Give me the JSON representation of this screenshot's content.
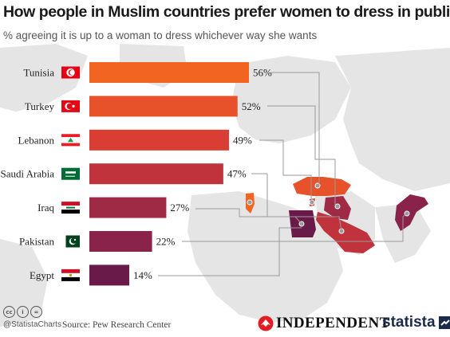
{
  "title": "How people in Muslim countries prefer women to dress in public",
  "subtitle": "% agreeing it is up to a woman to dress whichever way she wants",
  "chart_data": {
    "type": "bar",
    "orientation": "horizontal",
    "categories": [
      "Tunisia",
      "Turkey",
      "Lebanon",
      "Saudi Arabia",
      "Iraq",
      "Pakistan",
      "Egypt"
    ],
    "values": [
      56,
      52,
      49,
      47,
      27,
      22,
      14
    ],
    "value_labels": [
      "56%",
      "52%",
      "49%",
      "47%",
      "27%",
      "22%",
      "14%"
    ],
    "colors": [
      "#f26422",
      "#e8522b",
      "#d93e35",
      "#c0323c",
      "#9e2a45",
      "#8a2349",
      "#6a1a48"
    ],
    "flags": [
      "tunisia-flag",
      "turkey-flag",
      "lebanon-flag",
      "saudi-arabia-flag",
      "iraq-flag",
      "pakistan-flag",
      "egypt-flag"
    ],
    "grid": false,
    "legend": "none"
  },
  "footer": {
    "cc_icons": [
      "cc",
      "i",
      "="
    ],
    "handle": "@StatistaCharts",
    "source": "Source: Pew Research Center",
    "independent": "INDEPENDENT",
    "statista": "statista"
  }
}
